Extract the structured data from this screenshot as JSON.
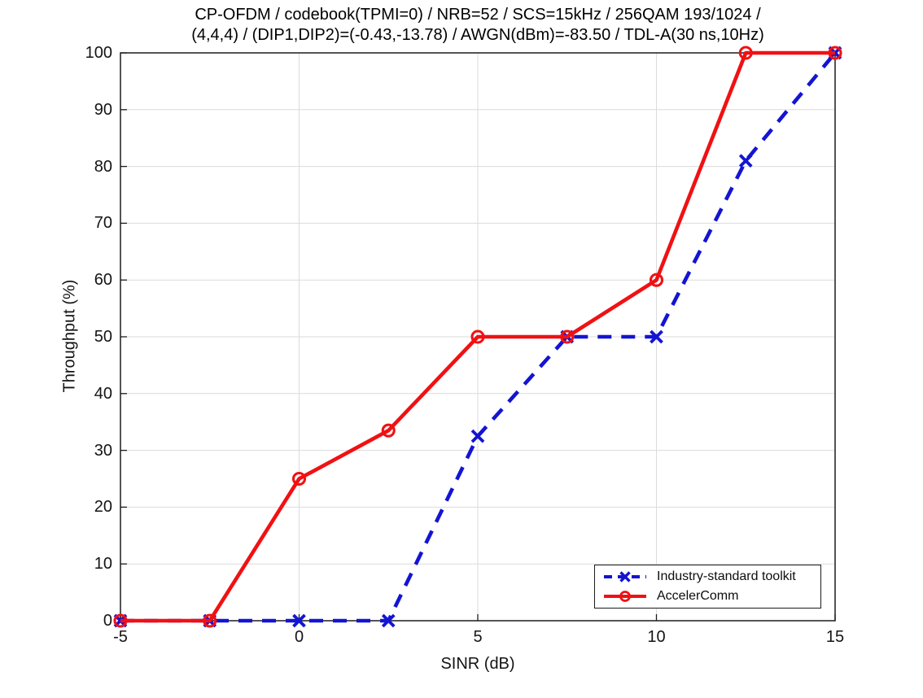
{
  "chart_data": {
    "type": "line",
    "title_lines": [
      "CP-OFDM / codebook(TPMI=0) / NRB=52 / SCS=15kHz / 256QAM 193/1024 /",
      "(4,4,4) / (DIP1,DIP2)=(-0.43,-13.78) / AWGN(dBm)=-83.50 / TDL-A(30 ns,10Hz)"
    ],
    "xlabel": "SINR (dB)",
    "ylabel": "Throughput (%)",
    "xlim": [
      -5,
      15
    ],
    "ylim": [
      0,
      100
    ],
    "x_ticks": [
      -5,
      0,
      5,
      10,
      15
    ],
    "y_ticks": [
      0,
      10,
      20,
      30,
      40,
      50,
      60,
      70,
      80,
      90,
      100
    ],
    "grid": true,
    "legend_position": "lower-right",
    "x": [
      -5,
      -2.5,
      0,
      2.5,
      5,
      7.5,
      10,
      12.5,
      15
    ],
    "series": [
      {
        "name": "Industry-standard toolkit",
        "values": [
          0,
          0,
          0,
          0,
          32.5,
          50,
          50,
          81,
          100
        ],
        "color": "#1414d2",
        "line_style": "dashed",
        "marker": "x"
      },
      {
        "name": "AccelerComm",
        "values": [
          0,
          0,
          25,
          33.5,
          50,
          50,
          60,
          100,
          100
        ],
        "color": "#f01113",
        "line_style": "solid",
        "marker": "o"
      }
    ],
    "colors": {
      "grid": "#dbdbdb",
      "axis": "#1c1c1c",
      "background": "#ffffff"
    }
  }
}
